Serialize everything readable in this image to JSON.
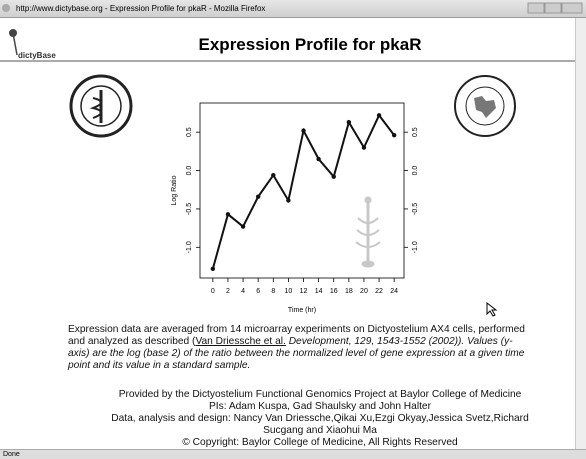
{
  "window": {
    "title": "http://www.dictybase.org - Expression Profile for pkaR - Mozilla Firefox",
    "status": "Done"
  },
  "header": {
    "logo": "dictyBase",
    "title": "Expression Profile for pkaR"
  },
  "chart": {
    "type": "line",
    "xlabel": "Time (hr)",
    "ylabel": "Log Ratio",
    "x": [
      0,
      2,
      4,
      6,
      8,
      10,
      12,
      14,
      16,
      18,
      20,
      22,
      24
    ],
    "values": [
      -1.28,
      -0.57,
      -0.73,
      -0.34,
      -0.06,
      -0.39,
      0.52,
      0.15,
      -0.08,
      0.63,
      0.3,
      0.72,
      0.46
    ],
    "color": "#111111",
    "xlim": [
      -1.7,
      25.3
    ],
    "ylim": [
      -1.4,
      0.88
    ],
    "xticks": [
      0,
      2,
      4,
      6,
      8,
      10,
      12,
      14,
      16,
      18,
      20,
      22,
      24
    ],
    "yticks": [
      {
        "value": -1,
        "label": "-1.0"
      },
      -0.5,
      {
        "value": 0,
        "label": "0.0"
      },
      0.5
    ],
    "y2ticks": [
      {
        "value": -1,
        "label": "-1.0"
      },
      -0.5,
      {
        "value": 0,
        "label": "0.0"
      },
      0.5
    ]
  },
  "description": {
    "text": "Expression data are averaged from 14 microarray experiments on Dictyostelium AX4 cells, performed and analyzed as described (",
    "link": "Van Driessche et al.",
    "citation": " Development, 129, 1543-1552 (2002)).",
    "note": "Values (y-axis) are the log (base 2) of the ratio between the normalized level of gene expression at a given time point and its value in a standard sample."
  },
  "credits": [
    "Provided by the Dictyostelium Functional Genomics Project at Baylor College of Medicine",
    "PIs: Adam Kuspa, Gad Shaulsky and John Halter",
    "Data, analysis and design: Nancy Van Driessche,Qikai Xu,Ezgi Okyay,Jessica Svetz,Richard",
    "Sucgang and Xiaohui Ma",
    "© Copyright: Baylor College of Medicine, All Rights Reserved"
  ]
}
